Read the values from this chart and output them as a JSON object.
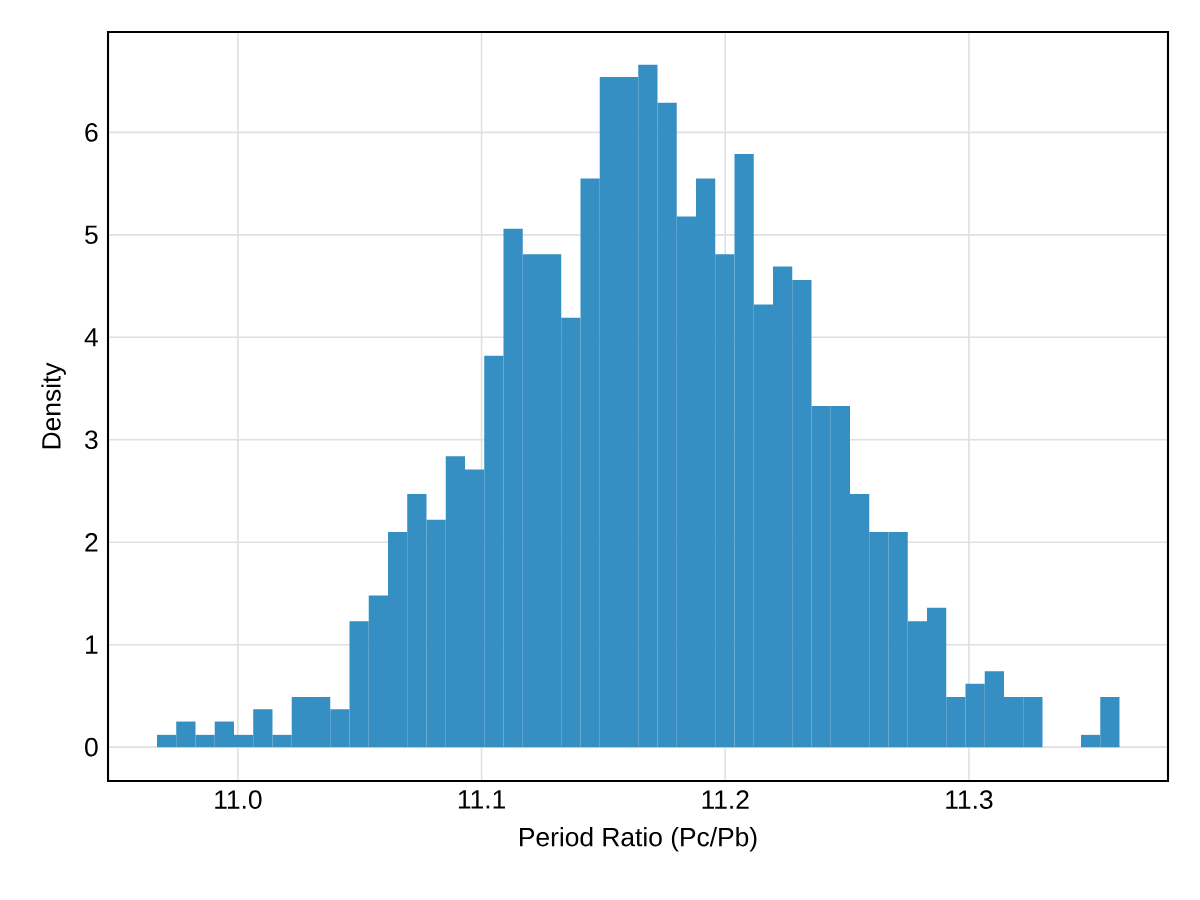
{
  "chart_data": {
    "type": "histogram",
    "xlabel": "Period Ratio (Pc/Pb)",
    "ylabel": "Density",
    "color": "#368fc2",
    "bins": [
      10.9668,
      10.9747,
      10.9826,
      10.9905,
      10.9984,
      11.0063,
      11.0142,
      11.0221,
      11.03,
      11.0379,
      11.0458,
      11.0537,
      11.0616,
      11.0695,
      11.0774,
      11.0853,
      11.0932,
      11.1011,
      11.109,
      11.1169,
      11.1248,
      11.1327,
      11.1406,
      11.1485,
      11.1564,
      11.1643,
      11.1722,
      11.1801,
      11.188,
      11.1959,
      11.2038,
      11.2117,
      11.2196,
      11.2275,
      11.2354,
      11.2433,
      11.2512,
      11.2591,
      11.267,
      11.2749,
      11.2828,
      11.2907,
      11.2986,
      11.3065,
      11.3144,
      11.3223,
      11.3302,
      11.3381,
      11.346,
      11.3539,
      11.3618
    ],
    "values": [
      0.12,
      0.25,
      0.12,
      0.25,
      0.12,
      0.37,
      0.12,
      0.49,
      0.49,
      0.37,
      1.23,
      1.48,
      2.1,
      2.47,
      2.22,
      2.84,
      2.71,
      3.82,
      5.06,
      4.81,
      4.81,
      4.19,
      5.55,
      6.54,
      6.54,
      6.66,
      6.29,
      5.18,
      5.55,
      4.81,
      5.79,
      4.32,
      4.69,
      4.56,
      3.33,
      3.33,
      2.47,
      2.1,
      2.1,
      1.23,
      1.36,
      0.49,
      0.62,
      0.74,
      0.49,
      0.49,
      0,
      0,
      0.12,
      0.49
    ],
    "xlim": [
      10.9467,
      11.3817
    ],
    "ylim": [
      -0.33,
      6.98
    ],
    "xticks": [
      {
        "value": 11.0,
        "label": "11.0"
      },
      {
        "value": 11.1,
        "label": "11.1"
      },
      {
        "value": 11.2,
        "label": "11.2"
      },
      {
        "value": 11.3,
        "label": "11.3"
      }
    ],
    "yticks": [
      0,
      1,
      2,
      3,
      4,
      5,
      6
    ],
    "grid": true
  }
}
